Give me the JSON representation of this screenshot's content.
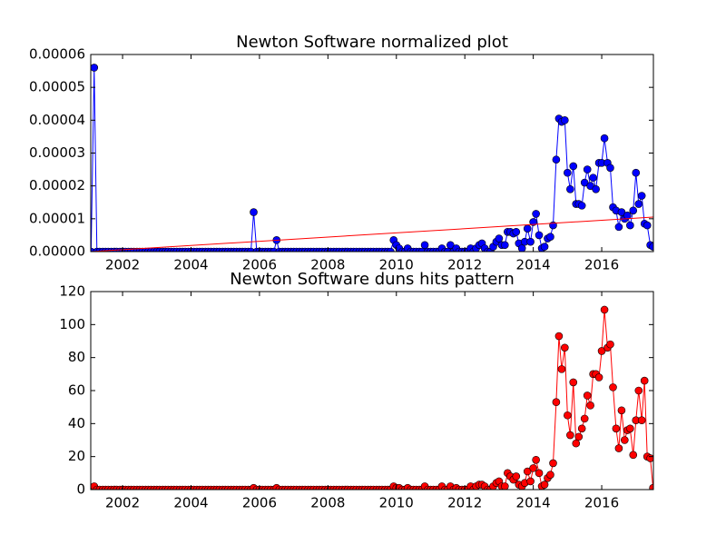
{
  "chart_data": [
    {
      "type": "line",
      "title": "Newton Software normalized plot",
      "x": [
        2001.08,
        2001.17,
        2001.25,
        2001.33,
        2001.42,
        2001.5,
        2001.58,
        2001.67,
        2001.75,
        2001.83,
        2001.92,
        2002,
        2002.08,
        2002.17,
        2002.25,
        2002.33,
        2002.42,
        2002.5,
        2002.58,
        2002.67,
        2002.75,
        2002.83,
        2002.92,
        2003,
        2003.08,
        2003.17,
        2003.25,
        2003.33,
        2003.42,
        2003.5,
        2003.58,
        2003.67,
        2003.75,
        2003.83,
        2003.92,
        2004,
        2004.08,
        2004.17,
        2004.25,
        2004.33,
        2004.42,
        2004.5,
        2004.58,
        2004.67,
        2004.75,
        2004.83,
        2004.92,
        2005,
        2005.08,
        2005.17,
        2005.25,
        2005.33,
        2005.42,
        2005.5,
        2005.58,
        2005.67,
        2005.75,
        2005.83,
        2005.92,
        2006,
        2006.08,
        2006.17,
        2006.25,
        2006.33,
        2006.42,
        2006.5,
        2006.58,
        2006.67,
        2006.75,
        2006.83,
        2006.92,
        2007,
        2007.08,
        2007.17,
        2007.25,
        2007.33,
        2007.42,
        2007.5,
        2007.58,
        2007.67,
        2007.75,
        2007.83,
        2007.92,
        2008,
        2008.08,
        2008.17,
        2008.25,
        2008.33,
        2008.42,
        2008.5,
        2008.58,
        2008.67,
        2008.75,
        2008.83,
        2008.92,
        2009,
        2009.08,
        2009.17,
        2009.25,
        2009.33,
        2009.42,
        2009.5,
        2009.58,
        2009.67,
        2009.75,
        2009.83,
        2009.92,
        2010,
        2010.08,
        2010.17,
        2010.25,
        2010.33,
        2010.42,
        2010.5,
        2010.58,
        2010.67,
        2010.75,
        2010.83,
        2010.92,
        2011,
        2011.08,
        2011.17,
        2011.25,
        2011.33,
        2011.42,
        2011.5,
        2011.58,
        2011.67,
        2011.75,
        2011.83,
        2011.92,
        2012,
        2012.08,
        2012.17,
        2012.25,
        2012.33,
        2012.42,
        2012.5,
        2012.58,
        2012.67,
        2012.75,
        2012.83,
        2012.92,
        2013,
        2013.08,
        2013.17,
        2013.25,
        2013.33,
        2013.42,
        2013.5,
        2013.58,
        2013.67,
        2013.75,
        2013.83,
        2013.92,
        2014,
        2014.08,
        2014.17,
        2014.25,
        2014.33,
        2014.42,
        2014.5,
        2014.58,
        2014.67,
        2014.75,
        2014.83,
        2014.92,
        2015,
        2015.08,
        2015.17,
        2015.25,
        2015.33,
        2015.42,
        2015.5,
        2015.58,
        2015.67,
        2015.75,
        2015.83,
        2015.92,
        2016,
        2016.08,
        2016.17,
        2016.25,
        2016.33,
        2016.42,
        2016.5,
        2016.58,
        2016.67,
        2016.75,
        2016.83,
        2016.92,
        2017,
        2017.08,
        2017.17,
        2017.25,
        2017.33,
        2017.42,
        2017.5
      ],
      "series": [
        {
          "color": "#0000ff",
          "markers": true,
          "values": [
            0,
            5.6e-05,
            0,
            0,
            0,
            0,
            0,
            0,
            0,
            0,
            0,
            0,
            0,
            0,
            0,
            0,
            0,
            0,
            0,
            0,
            0,
            0,
            0,
            0,
            0,
            0,
            0,
            0,
            0,
            0,
            0,
            0,
            0,
            0,
            0,
            0,
            0,
            0,
            0,
            0,
            0,
            0,
            0,
            0,
            0,
            0,
            0,
            0,
            0,
            0,
            0,
            0,
            0,
            0,
            0,
            0,
            0,
            1.2e-05,
            0,
            0,
            0,
            0,
            0,
            0,
            0,
            3.5e-06,
            0,
            0,
            0,
            0,
            0,
            0,
            0,
            0,
            0,
            0,
            0,
            0,
            0,
            0,
            0,
            0,
            0,
            0,
            0,
            0,
            0,
            0,
            0,
            0,
            0,
            0,
            0,
            0,
            0,
            0,
            0,
            0,
            0,
            0,
            0,
            0,
            0,
            0,
            0,
            0,
            3.5e-06,
            2e-06,
            1e-06,
            0,
            0,
            1e-06,
            0,
            0,
            0,
            0,
            0,
            2e-06,
            0,
            0,
            0,
            0,
            0,
            1e-06,
            0,
            0,
            2e-06,
            0,
            1e-06,
            0,
            0,
            0,
            0,
            1e-06,
            0,
            1e-06,
            2e-06,
            2.5e-06,
            1e-06,
            0,
            0,
            1.5e-06,
            3e-06,
            4e-06,
            2e-06,
            2e-06,
            6e-06,
            6e-06,
            5.5e-06,
            6e-06,
            2.5e-06,
            1e-06,
            3e-06,
            7e-06,
            3e-06,
            9e-06,
            1.15e-05,
            5e-06,
            1e-06,
            1.5e-06,
            4e-06,
            4.5e-06,
            8e-06,
            2.8e-05,
            4.05e-05,
            3.95e-05,
            4e-05,
            2.4e-05,
            1.9e-05,
            2.6e-05,
            1.45e-05,
            1.45e-05,
            1.4e-05,
            2.1e-05,
            2.5e-05,
            2e-05,
            2.25e-05,
            1.9e-05,
            2.7e-05,
            2.7e-05,
            3.45e-05,
            2.7e-05,
            2.55e-05,
            1.35e-05,
            1.25e-05,
            7.5e-06,
            1.2e-05,
            1e-05,
            1.1e-05,
            8e-06,
            1.25e-05,
            2.4e-05,
            1.45e-05,
            1.7e-05,
            8.5e-06,
            8e-06,
            2e-06,
            1.5e-06
          ]
        },
        {
          "color": "#ff0000",
          "markers": false,
          "x": [
            2001.08,
            2017.5
          ],
          "values": [
            0,
            1.05e-05
          ]
        }
      ],
      "xlim": [
        2001.07,
        2017.51
      ],
      "xticks": [
        2002,
        2004,
        2006,
        2008,
        2010,
        2012,
        2014,
        2016
      ],
      "ylim": [
        0,
        6e-05
      ],
      "yticks": [
        {
          "value": 0,
          "label": "0.00000"
        },
        1e-05,
        2e-05,
        3e-05,
        4e-05,
        5e-05,
        6e-05
      ]
    },
    {
      "type": "line",
      "title": "Newton Software duns hits pattern",
      "x": [
        2001.08,
        2001.17,
        2001.25,
        2001.33,
        2001.42,
        2001.5,
        2001.58,
        2001.67,
        2001.75,
        2001.83,
        2001.92,
        2002,
        2002.08,
        2002.17,
        2002.25,
        2002.33,
        2002.42,
        2002.5,
        2002.58,
        2002.67,
        2002.75,
        2002.83,
        2002.92,
        2003,
        2003.08,
        2003.17,
        2003.25,
        2003.33,
        2003.42,
        2003.5,
        2003.58,
        2003.67,
        2003.75,
        2003.83,
        2003.92,
        2004,
        2004.08,
        2004.17,
        2004.25,
        2004.33,
        2004.42,
        2004.5,
        2004.58,
        2004.67,
        2004.75,
        2004.83,
        2004.92,
        2005,
        2005.08,
        2005.17,
        2005.25,
        2005.33,
        2005.42,
        2005.5,
        2005.58,
        2005.67,
        2005.75,
        2005.83,
        2005.92,
        2006,
        2006.08,
        2006.17,
        2006.25,
        2006.33,
        2006.42,
        2006.5,
        2006.58,
        2006.67,
        2006.75,
        2006.83,
        2006.92,
        2007,
        2007.08,
        2007.17,
        2007.25,
        2007.33,
        2007.42,
        2007.5,
        2007.58,
        2007.67,
        2007.75,
        2007.83,
        2007.92,
        2008,
        2008.08,
        2008.17,
        2008.25,
        2008.33,
        2008.42,
        2008.5,
        2008.58,
        2008.67,
        2008.75,
        2008.83,
        2008.92,
        2009,
        2009.08,
        2009.17,
        2009.25,
        2009.33,
        2009.42,
        2009.5,
        2009.58,
        2009.67,
        2009.75,
        2009.83,
        2009.92,
        2010,
        2010.08,
        2010.17,
        2010.25,
        2010.33,
        2010.42,
        2010.5,
        2010.58,
        2010.67,
        2010.75,
        2010.83,
        2010.92,
        2011,
        2011.08,
        2011.17,
        2011.25,
        2011.33,
        2011.42,
        2011.5,
        2011.58,
        2011.67,
        2011.75,
        2011.83,
        2011.92,
        2012,
        2012.08,
        2012.17,
        2012.25,
        2012.33,
        2012.42,
        2012.5,
        2012.58,
        2012.67,
        2012.75,
        2012.83,
        2012.92,
        2013,
        2013.08,
        2013.17,
        2013.25,
        2013.33,
        2013.42,
        2013.5,
        2013.58,
        2013.67,
        2013.75,
        2013.83,
        2013.92,
        2014,
        2014.08,
        2014.17,
        2014.25,
        2014.33,
        2014.42,
        2014.5,
        2014.58,
        2014.67,
        2014.75,
        2014.83,
        2014.92,
        2015,
        2015.08,
        2015.17,
        2015.25,
        2015.33,
        2015.42,
        2015.5,
        2015.58,
        2015.67,
        2015.75,
        2015.83,
        2015.92,
        2016,
        2016.08,
        2016.17,
        2016.25,
        2016.33,
        2016.42,
        2016.5,
        2016.58,
        2016.67,
        2016.75,
        2016.83,
        2016.92,
        2017,
        2017.08,
        2017.17,
        2017.25,
        2017.33,
        2017.42,
        2017.5
      ],
      "series": [
        {
          "color": "#ff0000",
          "markers": true,
          "values": [
            1,
            2,
            0,
            0,
            0,
            0,
            0,
            0,
            0,
            0,
            0,
            0,
            0,
            0,
            0,
            0,
            0,
            0,
            0,
            0,
            0,
            0,
            0,
            0,
            0,
            0,
            0,
            0,
            0,
            0,
            0,
            0,
            0,
            0,
            0,
            0,
            0,
            0,
            0,
            0,
            0,
            0,
            0,
            0,
            0,
            0,
            0,
            0,
            0,
            0,
            0,
            0,
            0,
            0,
            0,
            0,
            0,
            1,
            0,
            0,
            0,
            0,
            0,
            0,
            0,
            1,
            0,
            0,
            0,
            0,
            0,
            0,
            0,
            0,
            0,
            0,
            0,
            0,
            0,
            0,
            0,
            0,
            0,
            0,
            0,
            0,
            0,
            0,
            0,
            0,
            0,
            0,
            0,
            0,
            0,
            0,
            0,
            0,
            0,
            0,
            0,
            0,
            0,
            0,
            0,
            0,
            2,
            1,
            1,
            0,
            0,
            1,
            0,
            0,
            0,
            0,
            0,
            2,
            0,
            0,
            0,
            0,
            0,
            2,
            0,
            0,
            2,
            0,
            1,
            0,
            0,
            0,
            0,
            2,
            0,
            2,
            3,
            3,
            2,
            0,
            0,
            2,
            4,
            5,
            2,
            2,
            10,
            8,
            6,
            8,
            3,
            2,
            4,
            11,
            5,
            13,
            18,
            10,
            2,
            3,
            7,
            9,
            16,
            53,
            93,
            73,
            86,
            45,
            33,
            65,
            28,
            32,
            37,
            43,
            57,
            51,
            70,
            70,
            68,
            84,
            109,
            86,
            88,
            62,
            37,
            25,
            48,
            30,
            36,
            37,
            21,
            42,
            60,
            42,
            66,
            20,
            19,
            1
          ]
        }
      ],
      "xlim": [
        2001.07,
        2017.51
      ],
      "xticks": [
        2002,
        2004,
        2006,
        2008,
        2010,
        2012,
        2014,
        2016
      ],
      "ylim": [
        0,
        120
      ],
      "yticks": [
        0,
        20,
        40,
        60,
        80,
        100,
        120
      ]
    }
  ]
}
